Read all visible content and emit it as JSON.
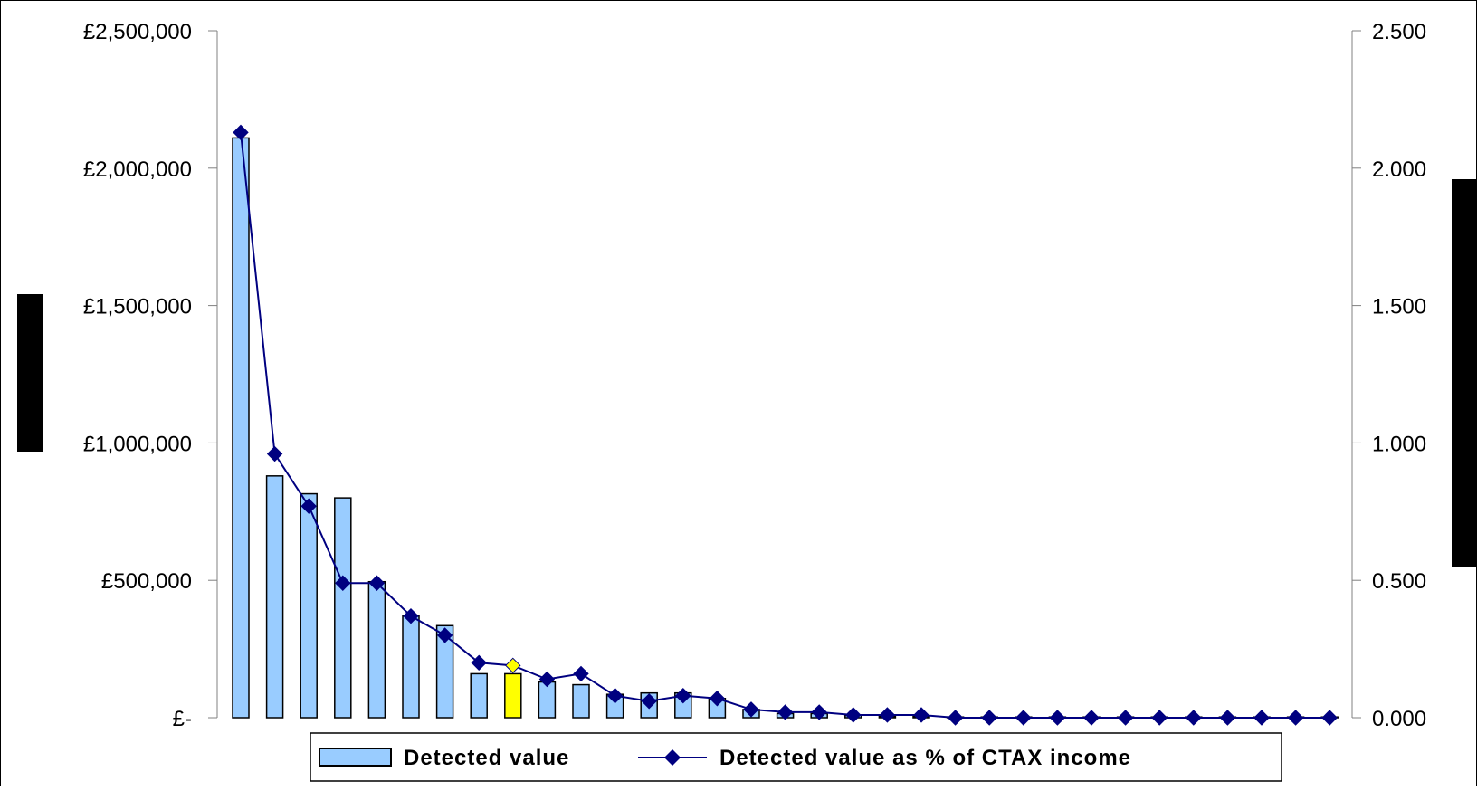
{
  "chart_data": {
    "type": "bar",
    "left_axis": {
      "ticks": [
        0,
        500000,
        1000000,
        1500000,
        2000000,
        2500000
      ],
      "tick_labels": [
        "£-",
        "£500,000",
        "£1,000,000",
        "£1,500,000",
        "£2,000,000",
        "£2,500,000"
      ],
      "ylim": [
        0,
        2500000
      ]
    },
    "right_axis": {
      "ticks": [
        0,
        0.5,
        1.0,
        1.5,
        2.0,
        2.5
      ],
      "tick_labels": [
        "0.000",
        "0.500",
        "1.000",
        "1.500",
        "2.000",
        "2.500"
      ],
      "ylim": [
        0,
        2.5
      ]
    },
    "series": [
      {
        "name": "Detected value",
        "kind": "bar",
        "axis": "left",
        "color": "#99ccff",
        "highlight_color": "#ffff00",
        "highlight_index": 8,
        "values": [
          2110000,
          880000,
          815000,
          800000,
          495000,
          370000,
          335000,
          160000,
          160000,
          130000,
          120000,
          85000,
          90000,
          90000,
          70000,
          30000,
          15000,
          15000,
          8000,
          5000,
          5000,
          2000,
          1000,
          1000,
          500,
          500,
          300,
          300,
          300,
          200,
          200,
          100,
          100
        ]
      },
      {
        "name": "Detected value as % of CTAX income",
        "kind": "line",
        "axis": "right",
        "color": "#000080",
        "highlight_color": "#ffff00",
        "highlight_index": 8,
        "values": [
          2.13,
          0.96,
          0.77,
          0.49,
          0.49,
          0.37,
          0.3,
          0.2,
          0.19,
          0.14,
          0.16,
          0.08,
          0.06,
          0.08,
          0.07,
          0.03,
          0.02,
          0.02,
          0.01,
          0.01,
          0.01,
          0.0,
          0.0,
          0.0,
          0.0,
          0.0,
          0.0,
          0.0,
          0.0,
          0.0,
          0.0,
          0.0,
          0.0
        ]
      }
    ],
    "legend": {
      "placement": "bottom",
      "bar_label": "Detected value",
      "line_label": "Detected value as % of CTAX income"
    },
    "grid": false,
    "redacted_axis_titles": true
  }
}
